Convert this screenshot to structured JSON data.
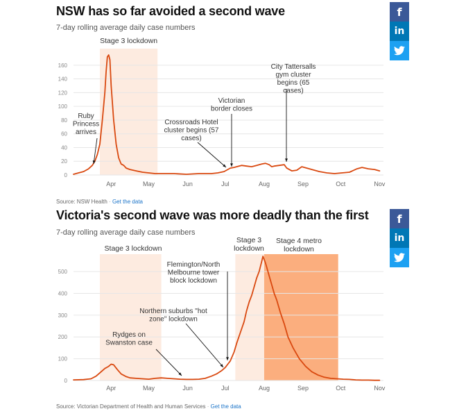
{
  "colors": {
    "line": "#d9480f",
    "light_shade": "#fdebe0",
    "dark_shade": "#fbae7e",
    "facebook": "#3b5998",
    "linkedin": "#0077b5",
    "twitter": "#1da1f2"
  },
  "share": {
    "facebook_icon": "f",
    "linkedin_icon": "in",
    "twitter_icon": "twitter-bird"
  },
  "charts": [
    {
      "title": "NSW has so far avoided a second wave",
      "subtitle": "7-day rolling average daily case numbers",
      "source_text": "Source: NSW Health",
      "source_link": "Get the data"
    },
    {
      "title": "Victoria's second wave was more deadly than the first",
      "subtitle": "7-day rolling average daily case numbers",
      "source_text": "Source: Victorian Department of Health and Human Services",
      "source_link": "Get the data"
    }
  ],
  "chart_data": [
    {
      "type": "line",
      "title": "NSW has so far avoided a second wave",
      "subtitle": "7-day rolling average daily case numbers",
      "x_ticks": [
        "Apr",
        "May",
        "Jun",
        "Jul",
        "Aug",
        "Sep",
        "Oct",
        "Nov"
      ],
      "x_tick_days": [
        0,
        30,
        61,
        91,
        122,
        153,
        183,
        214
      ],
      "y_ticks": [
        0,
        20,
        40,
        60,
        80,
        100,
        120,
        140,
        160
      ],
      "ylim": [
        0,
        170
      ],
      "xlim_days": [
        -30,
        216
      ],
      "grid": true,
      "series": [
        {
          "x_days": [
            -30,
            -26,
            -22,
            -18,
            -15,
            -13,
            -11,
            -9,
            -7,
            -5,
            -4,
            -3,
            -2,
            -1,
            0,
            2,
            4,
            6,
            8,
            10,
            12,
            15,
            20,
            25,
            30,
            35,
            40,
            50,
            60,
            70,
            80,
            85,
            90,
            93,
            95,
            98,
            100,
            104,
            108,
            112,
            116,
            120,
            123,
            126,
            128,
            130,
            134,
            138,
            140,
            144,
            148,
            152,
            156,
            160,
            166,
            172,
            178,
            184,
            190,
            196,
            200,
            205,
            210,
            214
          ],
          "values": [
            1,
            3,
            5,
            9,
            14,
            20,
            30,
            45,
            80,
            120,
            150,
            172,
            175,
            168,
            130,
            80,
            45,
            25,
            16,
            14,
            10,
            8,
            6,
            4,
            3,
            2,
            2,
            2,
            1,
            2,
            2,
            3,
            5,
            8,
            10,
            11,
            12,
            14,
            13,
            12,
            14,
            16,
            17,
            15,
            12,
            13,
            14,
            15,
            10,
            6,
            7,
            12,
            10,
            8,
            5,
            3,
            2,
            3,
            4,
            9,
            11,
            9,
            8,
            6
          ]
        }
      ],
      "shaded_periods": [
        {
          "label": "Stage 3 lockdown",
          "start_day": -9,
          "end_day": 37,
          "shade": "light"
        }
      ],
      "annotations": [
        {
          "text": [
            "Ruby",
            "Princess",
            "arrives"
          ],
          "day": -14
        },
        {
          "text": [
            "Crossroads Hotel",
            "cluster begins (57",
            "cases)"
          ],
          "day": 90
        },
        {
          "text": [
            "Victorian",
            "border closes"
          ],
          "day": 97
        },
        {
          "text": [
            "City Tattersalls",
            "gym cluster",
            "begins (65",
            "cases)"
          ],
          "day": 140
        }
      ]
    },
    {
      "type": "line",
      "title": "Victoria's second wave was more deadly than the first",
      "subtitle": "7-day rolling average daily case numbers",
      "x_ticks": [
        "Apr",
        "May",
        "Jun",
        "Jul",
        "Aug",
        "Sep",
        "Oct",
        "Nov"
      ],
      "x_tick_days": [
        0,
        30,
        61,
        91,
        122,
        153,
        183,
        214
      ],
      "y_ticks": [
        0,
        100,
        200,
        300,
        400,
        500
      ],
      "ylim": [
        0,
        580
      ],
      "xlim_days": [
        -30,
        216
      ],
      "grid": true,
      "series": [
        {
          "x_days": [
            -30,
            -22,
            -16,
            -12,
            -8,
            -5,
            -2,
            0,
            2,
            5,
            8,
            12,
            15,
            20,
            25,
            30,
            35,
            40,
            45,
            50,
            55,
            60,
            65,
            70,
            75,
            80,
            84,
            88,
            91,
            93,
            95,
            98,
            100,
            103,
            106,
            108,
            110,
            112,
            114,
            116,
            118,
            120,
            121,
            122,
            123,
            124,
            126,
            128,
            130,
            132,
            135,
            138,
            141,
            145,
            150,
            155,
            160,
            165,
            170,
            175,
            180,
            185,
            190,
            195,
            200,
            205,
            210,
            214
          ],
          "values": [
            3,
            4,
            8,
            20,
            40,
            55,
            65,
            75,
            72,
            50,
            30,
            18,
            12,
            10,
            8,
            6,
            10,
            12,
            10,
            8,
            6,
            5,
            5,
            6,
            10,
            20,
            30,
            45,
            60,
            75,
            90,
            130,
            170,
            220,
            270,
            320,
            360,
            390,
            430,
            470,
            500,
            545,
            570,
            555,
            540,
            520,
            480,
            440,
            400,
            370,
            310,
            260,
            200,
            150,
            100,
            65,
            40,
            25,
            15,
            10,
            8,
            6,
            5,
            3,
            2,
            2,
            1,
            1
          ]
        }
      ],
      "shaded_periods": [
        {
          "label": "Stage 3 lockdown",
          "start_day": -9,
          "end_day": 40,
          "shade": "light"
        },
        {
          "label": "Stage 3 lockdown",
          "start_day": 99,
          "end_day": 122,
          "shade": "light"
        },
        {
          "label": "Stage 4 metro lockdown",
          "start_day": 122,
          "end_day": 181,
          "shade": "dark"
        }
      ],
      "annotations": [
        {
          "text": [
            "Rydges on",
            "Swanston case"
          ],
          "day": 35
        },
        {
          "text": [
            "Northern suburbs \"hot",
            "zone\" lockdown"
          ],
          "day": 90
        },
        {
          "text": [
            "Flemington/North",
            "Melbourne tower",
            "block lockdown"
          ],
          "day": 93
        }
      ]
    }
  ]
}
